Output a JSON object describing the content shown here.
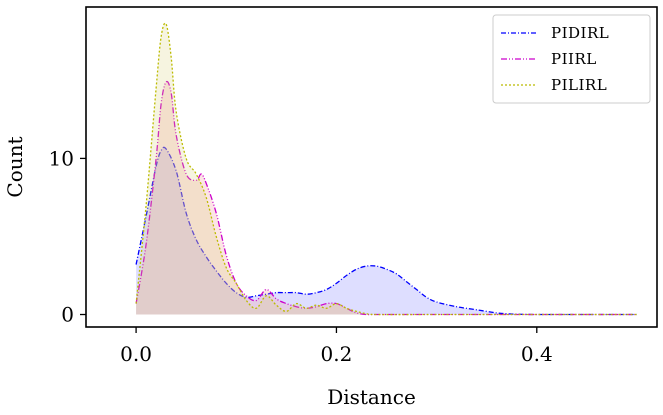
{
  "chart_data": {
    "type": "area",
    "title": "",
    "xlabel": "Distance",
    "ylabel": "Count",
    "xlim": [
      -0.05,
      0.52
    ],
    "ylim": [
      -0.8,
      19.7
    ],
    "xticks": [
      0.0,
      0.2,
      0.4
    ],
    "xtick_labels": [
      "0.0",
      "0.2",
      "0.4"
    ],
    "yticks": [
      0,
      10
    ],
    "ytick_labels": [
      "0",
      "10"
    ],
    "grid": false,
    "legend_position": "top-right",
    "series": [
      {
        "name": "PIDIRL",
        "color": "#0000ff",
        "fill": "#0000ff",
        "x": [
          0.0,
          0.01,
          0.02,
          0.025,
          0.03,
          0.04,
          0.05,
          0.06,
          0.07,
          0.08,
          0.09,
          0.1,
          0.11,
          0.12,
          0.13,
          0.14,
          0.15,
          0.16,
          0.17,
          0.18,
          0.19,
          0.2,
          0.21,
          0.22,
          0.23,
          0.24,
          0.25,
          0.26,
          0.27,
          0.28,
          0.29,
          0.3,
          0.32,
          0.34,
          0.36,
          0.37,
          0.38,
          0.4,
          0.45,
          0.5
        ],
        "y": [
          3.2,
          6.3,
          9.5,
          10.5,
          10.6,
          9.2,
          6.5,
          4.8,
          3.7,
          2.8,
          2.0,
          1.4,
          1.1,
          1.2,
          1.3,
          1.4,
          1.4,
          1.4,
          1.3,
          1.4,
          1.6,
          2.0,
          2.5,
          2.9,
          3.1,
          3.1,
          2.9,
          2.6,
          2.1,
          1.6,
          1.1,
          0.8,
          0.5,
          0.3,
          0.1,
          0.05,
          0.02,
          0.0,
          0.0,
          0.0
        ]
      },
      {
        "name": "PIIRL",
        "color": "#cc00cc",
        "fill": "#f4a0a0",
        "x": [
          0.0,
          0.01,
          0.02,
          0.025,
          0.03,
          0.035,
          0.04,
          0.05,
          0.06,
          0.065,
          0.07,
          0.08,
          0.09,
          0.1,
          0.11,
          0.12,
          0.13,
          0.14,
          0.15,
          0.16,
          0.17,
          0.18,
          0.19,
          0.2,
          0.21,
          0.22,
          0.23,
          0.24,
          0.3,
          0.4,
          0.5
        ],
        "y": [
          0.7,
          4.5,
          10.0,
          13.5,
          14.9,
          14.2,
          11.5,
          9.0,
          8.6,
          9.0,
          8.4,
          6.5,
          3.8,
          2.0,
          1.2,
          0.9,
          1.6,
          1.0,
          0.7,
          0.5,
          0.4,
          0.5,
          0.7,
          0.7,
          0.4,
          0.1,
          0.0,
          0.0,
          0.0,
          0.0,
          0.0
        ]
      },
      {
        "name": "PILIRL",
        "color": "#bbbb00",
        "fill": "#d4cc70",
        "x": [
          0.0,
          0.01,
          0.02,
          0.025,
          0.03,
          0.035,
          0.04,
          0.05,
          0.06,
          0.07,
          0.08,
          0.09,
          0.1,
          0.11,
          0.12,
          0.13,
          0.14,
          0.15,
          0.16,
          0.17,
          0.18,
          0.19,
          0.2,
          0.21,
          0.22,
          0.23,
          0.24,
          0.3,
          0.4,
          0.5
        ],
        "y": [
          0.7,
          7.0,
          14.5,
          17.8,
          18.6,
          16.5,
          13.0,
          10.0,
          9.0,
          7.5,
          5.0,
          3.0,
          2.0,
          0.9,
          0.4,
          1.2,
          0.6,
          0.2,
          0.7,
          0.4,
          0.6,
          0.4,
          0.7,
          0.4,
          0.2,
          0.05,
          0.0,
          0.0,
          0.0,
          0.0
        ]
      }
    ]
  }
}
